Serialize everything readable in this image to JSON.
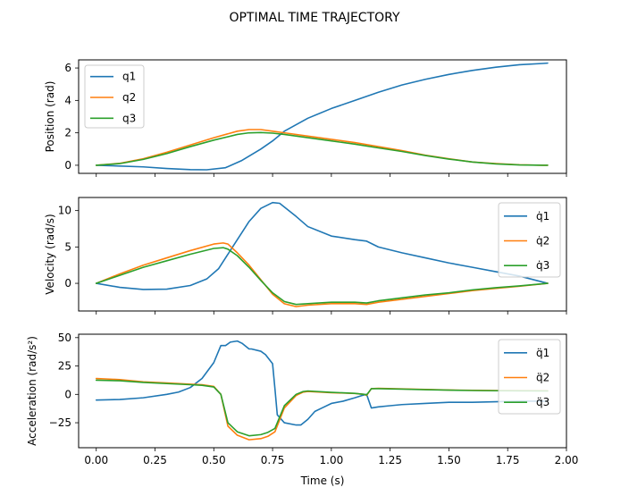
{
  "figure": {
    "title": "OPTIMAL TIME TRAJECTORY",
    "xlabel": "Time (s)",
    "colors": [
      "#1f77b4",
      "#ff7f0e",
      "#2ca02c"
    ]
  },
  "chart_data": [
    {
      "type": "line",
      "title": "",
      "xlabel": "",
      "ylabel": "Position (rad)",
      "xlim": [
        -0.075,
        2.0
      ],
      "ylim": [
        -0.5,
        6.5
      ],
      "xticks": [
        0.0,
        0.25,
        0.5,
        0.75,
        1.0,
        1.25,
        1.5,
        1.75,
        2.0
      ],
      "xtick_labels": [
        "",
        "",
        "",
        "",
        "",
        "",
        "",
        "",
        ""
      ],
      "yticks": [
        0,
        2,
        4,
        6
      ],
      "ytick_labels": [
        "0",
        "2",
        "4",
        "6"
      ],
      "legend_position": "upper-left",
      "series": [
        {
          "name": "q1",
          "x": [
            0,
            0.1,
            0.2,
            0.3,
            0.4,
            0.47,
            0.55,
            0.62,
            0.7,
            0.75,
            0.8,
            0.9,
            1.0,
            1.1,
            1.2,
            1.3,
            1.4,
            1.5,
            1.6,
            1.7,
            1.8,
            1.9,
            1.92
          ],
          "y": [
            0,
            -0.05,
            -0.1,
            -0.2,
            -0.27,
            -0.28,
            -0.15,
            0.3,
            1.0,
            1.5,
            2.1,
            2.9,
            3.5,
            4.0,
            4.5,
            4.95,
            5.3,
            5.6,
            5.85,
            6.05,
            6.2,
            6.28,
            6.3
          ]
        },
        {
          "name": "q2",
          "x": [
            0,
            0.1,
            0.2,
            0.3,
            0.4,
            0.5,
            0.6,
            0.65,
            0.7,
            0.75,
            0.8,
            0.9,
            1.0,
            1.1,
            1.2,
            1.3,
            1.4,
            1.5,
            1.6,
            1.7,
            1.8,
            1.9,
            1.92
          ],
          "y": [
            0,
            0.12,
            0.4,
            0.8,
            1.25,
            1.7,
            2.1,
            2.2,
            2.2,
            2.1,
            2.0,
            1.8,
            1.6,
            1.4,
            1.15,
            0.9,
            0.62,
            0.4,
            0.2,
            0.1,
            0.03,
            0.0,
            0.0
          ]
        },
        {
          "name": "q3",
          "x": [
            0,
            0.1,
            0.2,
            0.3,
            0.4,
            0.5,
            0.6,
            0.65,
            0.7,
            0.75,
            0.8,
            0.9,
            1.0,
            1.1,
            1.2,
            1.3,
            1.4,
            1.5,
            1.6,
            1.7,
            1.8,
            1.9,
            1.92
          ],
          "y": [
            0,
            0.1,
            0.36,
            0.72,
            1.15,
            1.55,
            1.9,
            2.0,
            2.02,
            1.98,
            1.9,
            1.7,
            1.5,
            1.3,
            1.07,
            0.85,
            0.6,
            0.38,
            0.2,
            0.08,
            0.02,
            0.0,
            0.0
          ]
        }
      ]
    },
    {
      "type": "line",
      "title": "",
      "xlabel": "",
      "ylabel": "Velocity (rad/s)",
      "xlim": [
        -0.075,
        2.0
      ],
      "ylim": [
        -3.8,
        11.8
      ],
      "xticks": [
        0.0,
        0.25,
        0.5,
        0.75,
        1.0,
        1.25,
        1.5,
        1.75,
        2.0
      ],
      "xtick_labels": [
        "",
        "",
        "",
        "",
        "",
        "",
        "",
        "",
        ""
      ],
      "yticks": [
        0,
        5,
        10
      ],
      "ytick_labels": [
        "0",
        "5",
        "10"
      ],
      "legend_position": "upper-right",
      "series": [
        {
          "name": "q̇1",
          "x": [
            0,
            0.1,
            0.2,
            0.3,
            0.4,
            0.47,
            0.52,
            0.55,
            0.6,
            0.65,
            0.7,
            0.75,
            0.78,
            0.85,
            0.9,
            1.0,
            1.1,
            1.15,
            1.2,
            1.3,
            1.4,
            1.5,
            1.6,
            1.7,
            1.8,
            1.92
          ],
          "y": [
            0,
            -0.55,
            -0.85,
            -0.8,
            -0.3,
            0.6,
            2.0,
            3.5,
            6.0,
            8.5,
            10.3,
            11.1,
            11.0,
            9.2,
            7.8,
            6.5,
            6.0,
            5.8,
            5.0,
            4.2,
            3.5,
            2.8,
            2.2,
            1.6,
            1.0,
            0.0
          ]
        },
        {
          "name": "q̇2",
          "x": [
            0,
            0.1,
            0.2,
            0.3,
            0.4,
            0.5,
            0.54,
            0.56,
            0.6,
            0.65,
            0.7,
            0.75,
            0.8,
            0.85,
            0.9,
            1.0,
            1.1,
            1.15,
            1.2,
            1.3,
            1.4,
            1.5,
            1.6,
            1.7,
            1.8,
            1.92
          ],
          "y": [
            0,
            1.3,
            2.5,
            3.5,
            4.5,
            5.4,
            5.55,
            5.4,
            4.2,
            2.5,
            0.5,
            -1.5,
            -2.8,
            -3.2,
            -3.0,
            -2.8,
            -2.8,
            -2.9,
            -2.6,
            -2.2,
            -1.8,
            -1.4,
            -1.0,
            -0.7,
            -0.4,
            0.0
          ]
        },
        {
          "name": "q̇3",
          "x": [
            0,
            0.1,
            0.2,
            0.3,
            0.4,
            0.5,
            0.54,
            0.56,
            0.6,
            0.65,
            0.7,
            0.75,
            0.8,
            0.85,
            0.9,
            1.0,
            1.1,
            1.15,
            1.2,
            1.3,
            1.4,
            1.5,
            1.6,
            1.7,
            1.8,
            1.92
          ],
          "y": [
            0,
            1.1,
            2.2,
            3.1,
            4.0,
            4.8,
            4.9,
            4.7,
            3.8,
            2.2,
            0.4,
            -1.3,
            -2.5,
            -2.9,
            -2.8,
            -2.6,
            -2.6,
            -2.7,
            -2.4,
            -2.0,
            -1.6,
            -1.3,
            -0.9,
            -0.6,
            -0.35,
            0.0
          ]
        }
      ]
    },
    {
      "type": "line",
      "title": "",
      "xlabel": "Time (s)",
      "ylabel": "Acceleration (rad/s²)",
      "xlim": [
        -0.075,
        2.0
      ],
      "ylim": [
        -47,
        53
      ],
      "xticks": [
        0.0,
        0.25,
        0.5,
        0.75,
        1.0,
        1.25,
        1.5,
        1.75,
        2.0
      ],
      "xtick_labels": [
        "0.00",
        "0.25",
        "0.50",
        "0.75",
        "1.00",
        "1.25",
        "1.50",
        "1.75",
        "2.00"
      ],
      "yticks": [
        -25,
        0,
        25,
        50
      ],
      "ytick_labels": [
        "−25",
        "0",
        "25",
        "50"
      ],
      "legend_position": "upper-right",
      "series": [
        {
          "name": "q̈1",
          "x": [
            0,
            0.1,
            0.2,
            0.3,
            0.35,
            0.4,
            0.45,
            0.5,
            0.53,
            0.55,
            0.57,
            0.6,
            0.62,
            0.65,
            0.66,
            0.7,
            0.72,
            0.75,
            0.76,
            0.77,
            0.8,
            0.85,
            0.87,
            0.9,
            0.93,
            0.96,
            1.0,
            1.05,
            1.1,
            1.13,
            1.15,
            1.17,
            1.2,
            1.25,
            1.3,
            1.4,
            1.5,
            1.6,
            1.7,
            1.8,
            1.92
          ],
          "y": [
            -5,
            -4.5,
            -3,
            0,
            2,
            6,
            14,
            28,
            43,
            43,
            46,
            47,
            45,
            40,
            40,
            38,
            35,
            27,
            5,
            -18,
            -25,
            -27,
            -27,
            -22,
            -15,
            -12,
            -8,
            -6,
            -3,
            -1,
            0,
            -12,
            -11,
            -10,
            -9,
            -8,
            -7,
            -7,
            -6.5,
            -6,
            -6
          ]
        },
        {
          "name": "q̈2",
          "x": [
            0,
            0.1,
            0.2,
            0.3,
            0.4,
            0.45,
            0.5,
            0.53,
            0.56,
            0.6,
            0.65,
            0.7,
            0.73,
            0.76,
            0.8,
            0.85,
            0.88,
            0.9,
            1.0,
            1.1,
            1.14,
            1.15,
            1.17,
            1.2,
            1.3,
            1.4,
            1.5,
            1.6,
            1.7,
            1.8,
            1.92
          ],
          "y": [
            14,
            13,
            11,
            10,
            9,
            8.5,
            7,
            0,
            -28,
            -36,
            -40,
            -39,
            -37,
            -33,
            -12,
            -1,
            2,
            2.5,
            1.5,
            0.8,
            0,
            -1,
            5,
            5.3,
            4.8,
            4.3,
            3.8,
            3.6,
            3.4,
            3.3,
            3.2
          ]
        },
        {
          "name": "q̈3",
          "x": [
            0,
            0.1,
            0.2,
            0.3,
            0.4,
            0.45,
            0.5,
            0.53,
            0.56,
            0.6,
            0.65,
            0.7,
            0.73,
            0.76,
            0.8,
            0.85,
            0.88,
            0.9,
            1.0,
            1.1,
            1.14,
            1.15,
            1.17,
            1.2,
            1.3,
            1.4,
            1.5,
            1.6,
            1.7,
            1.8,
            1.92
          ],
          "y": [
            12.5,
            12,
            10.5,
            9.5,
            8.5,
            8,
            6.5,
            0,
            -25,
            -33,
            -36.5,
            -35.5,
            -33.5,
            -30,
            -10,
            0,
            2.5,
            3,
            1.8,
            0.9,
            0,
            -0.5,
            5,
            5,
            4.6,
            4.1,
            3.7,
            3.4,
            3.2,
            3.1,
            3.0
          ]
        }
      ]
    }
  ]
}
